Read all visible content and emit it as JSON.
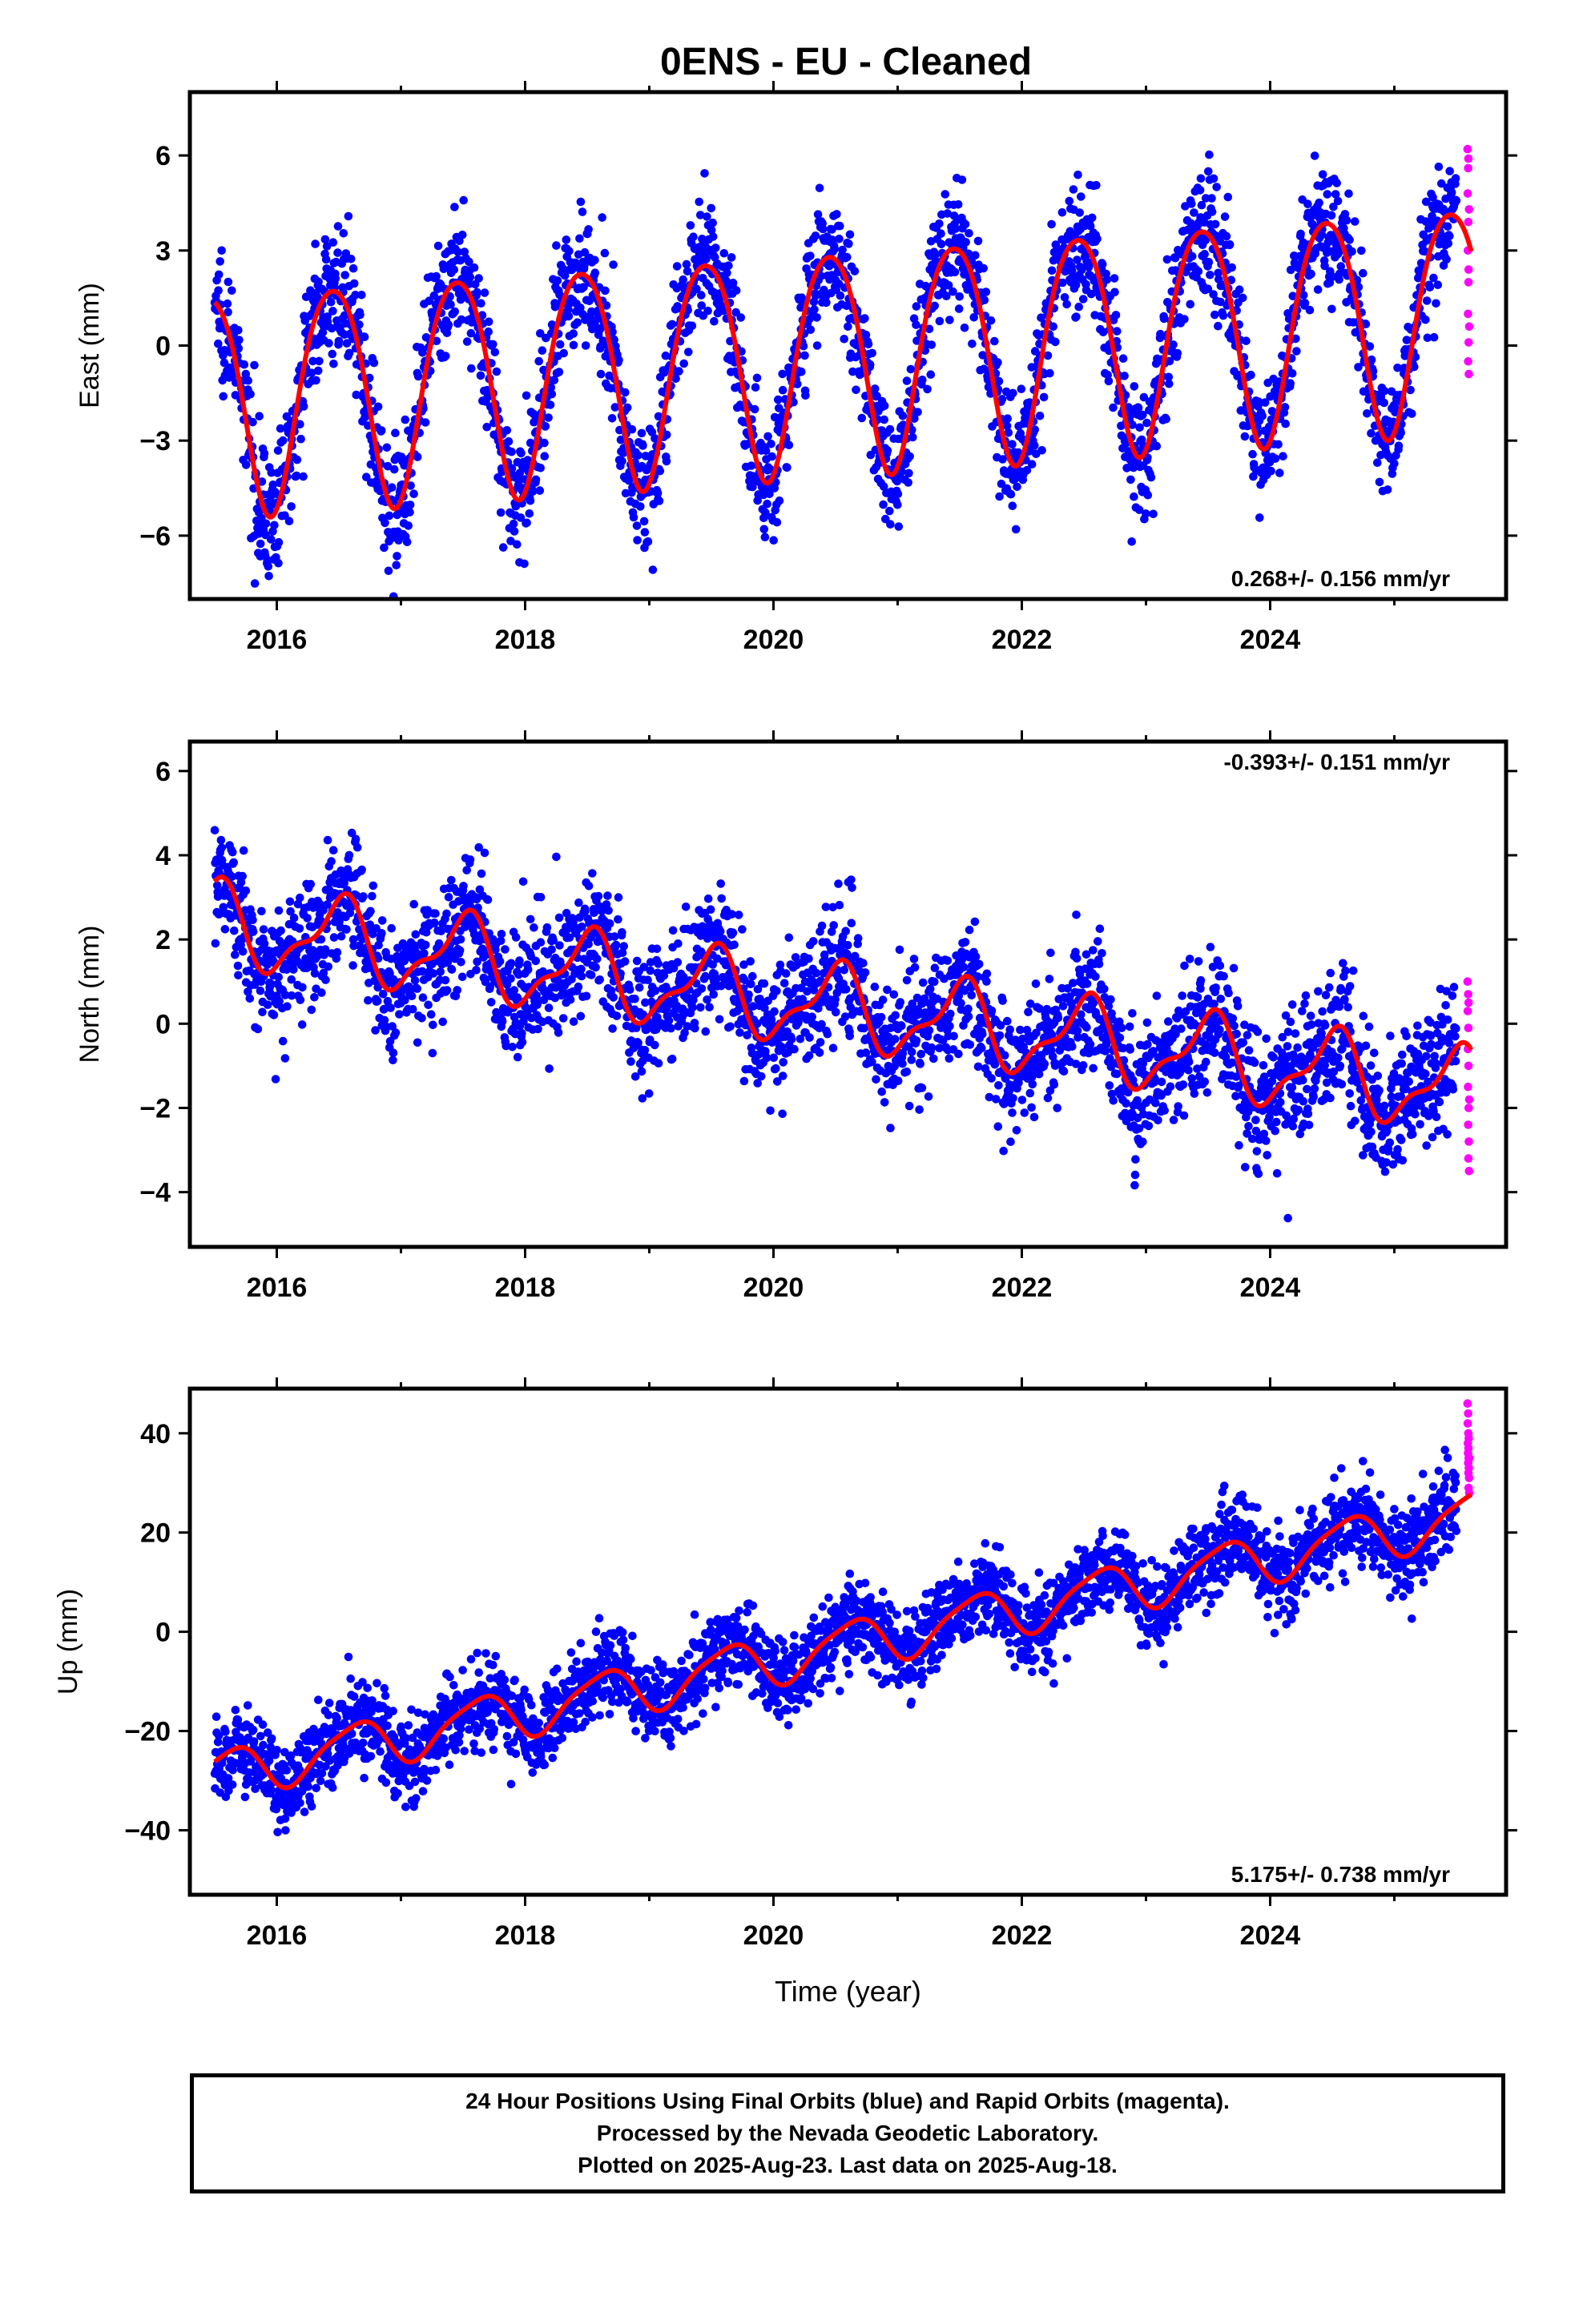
{
  "title": "0ENS  - EU - Cleaned",
  "colors": {
    "final_orbits": "#0000ff",
    "rapid_orbits": "#ff00ff",
    "model": "#ff0000",
    "frame": "#000000"
  },
  "footer": {
    "lines": [
      "24 Hour Positions Using Final Orbits (blue) and Rapid Orbits (magenta).",
      "Processed by the Nevada Geodetic Laboratory.",
      "Plotted on 2025-Aug-23. Last data on 2025-Aug-18."
    ]
  },
  "chart_data": [
    {
      "type": "scatter",
      "panel": "east",
      "ylabel": "East (mm)",
      "xlabel": "",
      "xlim": [
        2015.3,
        2025.9
      ],
      "ylim": [
        -8,
        8
      ],
      "x_ticks": [
        2016,
        2018,
        2020,
        2022,
        2024
      ],
      "x_tick_labels": [
        "2016",
        "2018",
        "2020",
        "2022",
        "2024"
      ],
      "y_ticks": [
        -6,
        -3,
        0,
        3,
        6
      ],
      "y_tick_labels": [
        "−6",
        "−3",
        "0",
        "3",
        "6"
      ],
      "rate_annotation": "0.268+/- 0.156 mm/yr",
      "rate_position": "bottom-right",
      "data_start": 2015.5,
      "final_end": 2025.5,
      "rapid_start": 2025.54,
      "rapid_end": 2025.63,
      "model": {
        "trend": 0.268,
        "offset": -0.3,
        "annual_amp": 3.5,
        "annual_peak": 0.45,
        "semiannual_amp": 0.4,
        "semiannual_phase": 0.2
      },
      "scatter": 1.0,
      "rapid_points": [
        6.2,
        5.6,
        4.8,
        3.9,
        3.0,
        2.0,
        1.0,
        0.1,
        -0.5,
        -0.9,
        5.9,
        4.3,
        2.4,
        0.6
      ]
    },
    {
      "type": "scatter",
      "panel": "north",
      "ylabel": "North (mm)",
      "xlabel": "",
      "xlim": [
        2015.3,
        2025.9
      ],
      "ylim": [
        -5.3,
        6.7
      ],
      "x_ticks": [
        2016,
        2018,
        2020,
        2022,
        2024
      ],
      "x_tick_labels": [
        "2016",
        "2018",
        "2020",
        "2022",
        "2024"
      ],
      "y_ticks": [
        -4,
        -2,
        0,
        2,
        4,
        6
      ],
      "y_tick_labels": [
        "−4",
        "−2",
        "0",
        "2",
        "4",
        "6"
      ],
      "rate_annotation": "-0.393+/- 0.151 mm/yr",
      "rate_position": "top-right",
      "data_start": 2015.5,
      "final_end": 2025.5,
      "rapid_start": 2025.54,
      "rapid_end": 2025.63,
      "model": {
        "trend": -0.393,
        "offset": 0.4,
        "annual_amp": 0.9,
        "annual_peak": 0.5,
        "semiannual_amp": 0.35,
        "semiannual_phase": 0.1
      },
      "scatter": 0.75,
      "rapid_points": [
        1.0,
        0.7,
        0.3,
        -0.1,
        -0.6,
        -1.0,
        -1.5,
        -2.0,
        -2.4,
        -2.8,
        -3.2,
        -3.5,
        0.5,
        -1.8
      ]
    },
    {
      "type": "scatter",
      "panel": "up",
      "ylabel": "Up (mm)",
      "xlabel": "Time (year)",
      "xlim": [
        2015.3,
        2025.9
      ],
      "ylim": [
        -53,
        49
      ],
      "x_ticks": [
        2016,
        2018,
        2020,
        2022,
        2024
      ],
      "x_tick_labels": [
        "2016",
        "2018",
        "2020",
        "2022",
        "2024"
      ],
      "y_ticks": [
        -40,
        -20,
        0,
        20,
        40
      ],
      "y_tick_labels": [
        "−40",
        "−20",
        "0",
        "20",
        "40"
      ],
      "rate_annotation": "5.175+/- 0.738 mm/yr",
      "rate_position": "bottom-right",
      "data_start": 2015.5,
      "final_end": 2025.5,
      "rapid_start": 2025.54,
      "rapid_end": 2025.63,
      "model": {
        "trend": 5.175,
        "offset": -3.0,
        "annual_amp": 4.8,
        "annual_peak": 0.62,
        "semiannual_amp": 1.0,
        "semiannual_phase": 0.3
      },
      "scatter": 4.2,
      "rapid_points": [
        46,
        44,
        42,
        40,
        38,
        37,
        36,
        35,
        34,
        33,
        32,
        31,
        29,
        28,
        39,
        35
      ]
    }
  ]
}
